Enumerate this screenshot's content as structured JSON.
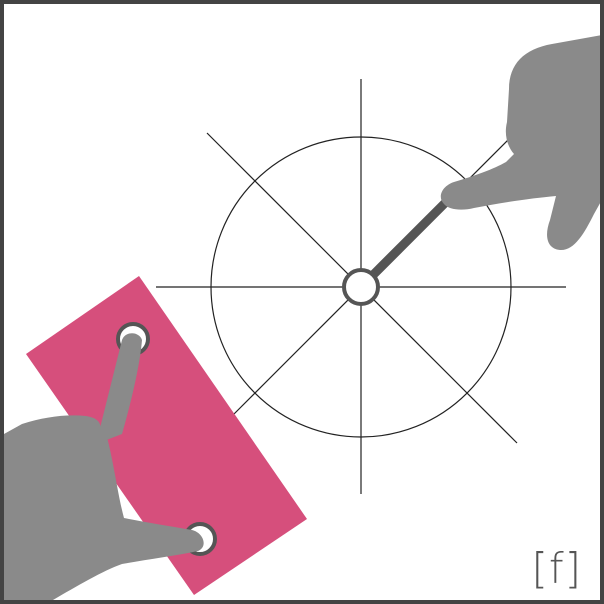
{
  "logo": {
    "text": "[f]"
  },
  "colors": {
    "frame": "#444444",
    "hand": "#8a8a8a",
    "card": "#d64f7c",
    "line": "#222222",
    "handle": "#555555"
  },
  "icons": {
    "top_hand": "pointing-hand-icon",
    "bottom_hand": "pinch-hand-icon"
  }
}
